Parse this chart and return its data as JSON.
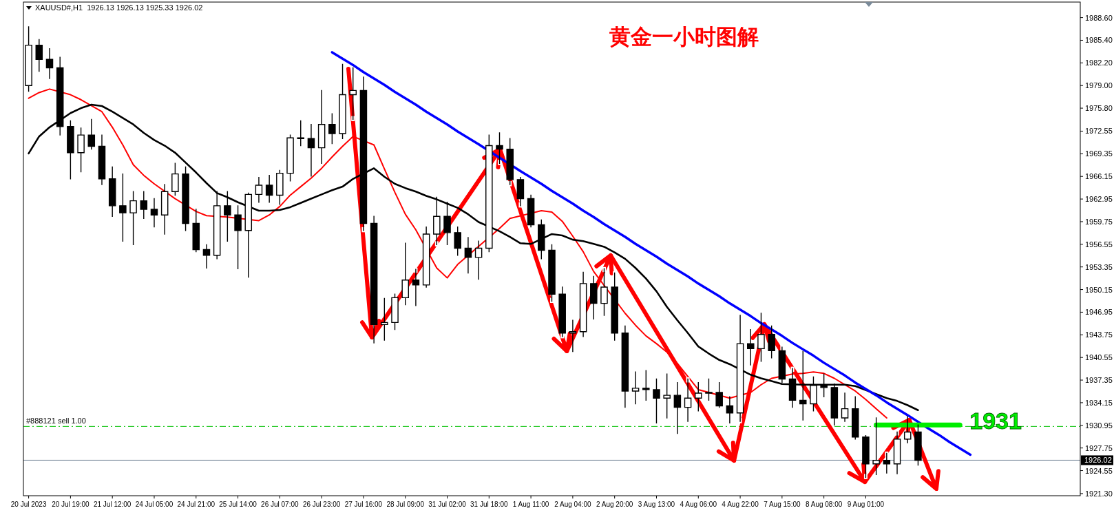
{
  "chart_data": {
    "type": "candlestick",
    "title": "黄金一小时图解",
    "annotations": [
      "XAUUSD#,H1  1926.13 1926.13 1925.33 1926.02",
      {
        "text": "#888121 sell 1.00",
        "y": 1930.8
      }
    ],
    "categories": [
      "20 Jul 2023",
      null,
      null,
      null,
      "20 Jul 19:00",
      null,
      null,
      null,
      "21 Jul 12:00",
      null,
      null,
      null,
      "24 Jul 05:00",
      null,
      null,
      null,
      "24 Jul 21:00",
      null,
      null,
      null,
      "25 Jul 14:00",
      null,
      null,
      null,
      "26 Jul 07:00",
      null,
      null,
      null,
      "26 Jul 23:00",
      null,
      null,
      null,
      "27 Jul 16:00",
      null,
      null,
      null,
      "28 Jul 09:00",
      null,
      null,
      null,
      "31 Jul 02:00",
      null,
      null,
      null,
      "31 Jul 18:00",
      null,
      null,
      null,
      "1 Aug 11:00",
      null,
      null,
      null,
      "2 Aug 04:00",
      null,
      null,
      null,
      "2 Aug 20:00",
      null,
      null,
      null,
      "3 Aug 13:00",
      null,
      null,
      null,
      "4 Aug 06:00",
      null,
      null,
      null,
      "4 Aug 22:00",
      null,
      null,
      null,
      "7 Aug 15:00",
      null,
      null,
      null,
      "8 Aug 08:00",
      null,
      null,
      null,
      "9 Aug 01:00",
      null,
      null,
      null,
      null,
      null,
      null,
      null,
      null,
      null,
      null,
      null,
      null,
      null,
      null,
      null,
      null,
      null,
      null,
      null,
      null
    ],
    "ohlc": [
      [
        1979.0,
        1987.3,
        1978.2,
        1984.7
      ],
      [
        1984.7,
        1985.5,
        1981.0,
        1982.7
      ],
      [
        1982.7,
        1984.2,
        1980.0,
        1981.5
      ],
      [
        1981.5,
        1983.0,
        1972.0,
        1973.2
      ],
      [
        1973.2,
        1974.0,
        1965.8,
        1969.5
      ],
      [
        1969.5,
        1973.0,
        1966.8,
        1972.0
      ],
      [
        1972.0,
        1974.2,
        1970.0,
        1970.4
      ],
      [
        1970.4,
        1972.0,
        1965.0,
        1965.8
      ],
      [
        1965.8,
        1967.5,
        1960.5,
        1962.0
      ],
      [
        1962.0,
        1966.5,
        1957.0,
        1961.0
      ],
      [
        1961.0,
        1964.0,
        1956.5,
        1962.7
      ],
      [
        1962.7,
        1964.0,
        1960.2,
        1961.5
      ],
      [
        1961.5,
        1963.0,
        1959.0,
        1960.7
      ],
      [
        1960.7,
        1965.0,
        1958.0,
        1964.0
      ],
      [
        1964.0,
        1968.0,
        1963.5,
        1966.5
      ],
      [
        1966.5,
        1967.5,
        1958.5,
        1959.5
      ],
      [
        1959.5,
        1961.5,
        1955.5,
        1955.8
      ],
      [
        1955.8,
        1956.5,
        1953.2,
        1955.0
      ],
      [
        1955.0,
        1964.0,
        1954.5,
        1962.0
      ],
      [
        1962.0,
        1964.0,
        1957.0,
        1960.7
      ],
      [
        1960.7,
        1962.0,
        1953.1,
        1958.5
      ],
      [
        1958.5,
        1963.8,
        1951.9,
        1963.6
      ],
      [
        1963.6,
        1966.0,
        1962.5,
        1964.9
      ],
      [
        1964.9,
        1966.3,
        1962.5,
        1963.5
      ],
      [
        1963.5,
        1967.0,
        1962.2,
        1966.6
      ],
      [
        1966.6,
        1972.0,
        1965.5,
        1971.6
      ],
      [
        1971.6,
        1974.0,
        1970.5,
        1971.5
      ],
      [
        1971.5,
        1973.5,
        1966.2,
        1970.2
      ],
      [
        1970.2,
        1978.3,
        1968.0,
        1973.5
      ],
      [
        1973.5,
        1975.0,
        1970.8,
        1972.2
      ],
      [
        1972.2,
        1982.0,
        1971.5,
        1977.7
      ],
      [
        1977.7,
        1981.5,
        1974.2,
        1978.3
      ],
      [
        1978.3,
        1980.2,
        1958.5,
        1959.5
      ],
      [
        1959.5,
        1960.5,
        1942.6,
        1945.2
      ],
      [
        1945.2,
        1948.9,
        1943.0,
        1945.5
      ],
      [
        1945.5,
        1949.5,
        1944.5,
        1949.0
      ],
      [
        1949.0,
        1956.7,
        1948.0,
        1951.5
      ],
      [
        1951.5,
        1953.0,
        1947.9,
        1950.8
      ],
      [
        1950.8,
        1959.0,
        1950.5,
        1958.0
      ],
      [
        1958.0,
        1963.2,
        1956.5,
        1960.5
      ],
      [
        1960.5,
        1962.5,
        1956.5,
        1958.2
      ],
      [
        1958.2,
        1959.0,
        1955.0,
        1956.0
      ],
      [
        1956.0,
        1957.5,
        1952.5,
        1954.7
      ],
      [
        1954.7,
        1957.0,
        1951.6,
        1956.0
      ],
      [
        1956.0,
        1972.0,
        1955.5,
        1970.5
      ],
      [
        1970.5,
        1972.3,
        1968.0,
        1970.0
      ],
      [
        1970.0,
        1971.5,
        1965.0,
        1965.7
      ],
      [
        1965.7,
        1966.0,
        1962.0,
        1963.0
      ],
      [
        1963.0,
        1963.5,
        1959.0,
        1959.3
      ],
      [
        1959.3,
        1960.0,
        1954.5,
        1955.7
      ],
      [
        1955.7,
        1956.5,
        1948.5,
        1949.5
      ],
      [
        1949.5,
        1950.5,
        1943.5,
        1944.0
      ],
      [
        1944.0,
        1945.8,
        1941.4,
        1944.2
      ],
      [
        1944.2,
        1952.6,
        1943.5,
        1951.0
      ],
      [
        1951.0,
        1952.0,
        1946.0,
        1948.2
      ],
      [
        1948.2,
        1953.1,
        1946.5,
        1950.5
      ],
      [
        1950.5,
        1952.5,
        1943.0,
        1944.0
      ],
      [
        1944.0,
        1945.0,
        1933.5,
        1935.8
      ],
      [
        1935.8,
        1938.5,
        1934.0,
        1936.2
      ],
      [
        1936.2,
        1938.7,
        1934.5,
        1936.0
      ],
      [
        1936.0,
        1937.5,
        1931.3,
        1934.8
      ],
      [
        1934.8,
        1938.2,
        1932.0,
        1935.2
      ],
      [
        1935.2,
        1937.0,
        1929.8,
        1933.5
      ],
      [
        1933.5,
        1937.5,
        1931.5,
        1934.8
      ],
      [
        1934.8,
        1937.0,
        1933.0,
        1935.5
      ],
      [
        1935.5,
        1937.5,
        1934.5,
        1935.6
      ],
      [
        1935.6,
        1937.0,
        1933.5,
        1933.7
      ],
      [
        1933.7,
        1935.0,
        1931.3,
        1932.7
      ],
      [
        1932.7,
        1946.5,
        1931.5,
        1942.5
      ],
      [
        1942.5,
        1944.5,
        1939.5,
        1941.8
      ],
      [
        1941.8,
        1946.8,
        1940.0,
        1943.8
      ],
      [
        1943.8,
        1945.0,
        1940.5,
        1941.5
      ],
      [
        1941.5,
        1942.0,
        1937.0,
        1937.5
      ],
      [
        1937.5,
        1939.0,
        1933.5,
        1934.5
      ],
      [
        1934.5,
        1941.4,
        1931.7,
        1934.0
      ],
      [
        1934.0,
        1937.8,
        1933.0,
        1936.6
      ],
      [
        1936.6,
        1938.2,
        1935.0,
        1936.3
      ],
      [
        1936.3,
        1936.8,
        1931.0,
        1932.0
      ],
      [
        1932.0,
        1935.5,
        1931.5,
        1933.3
      ],
      [
        1933.3,
        1935.0,
        1929.0,
        1929.3
      ],
      [
        1929.3,
        1929.5,
        1923.6,
        1925.5
      ],
      [
        1925.5,
        1932.0,
        1924.0,
        1926.0
      ],
      [
        1926.0,
        1927.0,
        1924.2,
        1925.5
      ],
      [
        1925.5,
        1930.0,
        1924.1,
        1929.0
      ],
      [
        1929.0,
        1932.2,
        1928.5,
        1930.0
      ],
      [
        1930.0,
        1931.0,
        1925.33,
        1926.02
      ],
      null,
      null,
      null,
      null,
      null,
      null,
      null,
      null,
      null,
      null,
      null,
      null,
      null,
      null,
      null
    ],
    "series": [
      {
        "type": "line",
        "color": "#ff0000",
        "values": [
          1977.2,
          1978.0,
          1978.5,
          null,
          1977.7,
          1977.0,
          null,
          1975.3,
          1973.1,
          1970.6,
          1967.8,
          1966.3,
          1965.1,
          null,
          1963.0,
          null,
          1961.2,
          1960.6,
          null,
          1960.4,
          null,
          null,
          1959.9,
          1960.7,
          1961.9,
          1963.5,
          1964.7,
          1965.9,
          1967.3,
          1968.9,
          1970.4,
          1971.8,
          null,
          1970.6,
          1967.2,
          1963.9,
          1960.8,
          1958.6,
          null,
          1953.2,
          1951.8,
          1953.7,
          null,
          null,
          null,
          1958.8,
          1960.2,
          null,
          null,
          1961.3,
          1961.1,
          1959.8,
          1957.7,
          1955.5,
          1952.7,
          null,
          null,
          1946.8,
          1945.1,
          1943.6,
          1942.5,
          1941.3,
          1939.7,
          null,
          1936.0,
          null,
          null,
          1934.8,
          null,
          1935.6,
          1936.7,
          1937.6,
          null,
          1938.2,
          1938.3,
          1938.5,
          1938.3,
          1937.6,
          null,
          1935.8,
          1934.6,
          1933.3,
          1932.0,
          null,
          null,
          null,
          null,
          null,
          null,
          null,
          null,
          null,
          null,
          null,
          null,
          null,
          null,
          null,
          null,
          null,
          null
        ]
      },
      {
        "type": "line",
        "color": "#000000",
        "values": [
          1969.4,
          1971.8,
          1973.1,
          null,
          1975.1,
          1975.8,
          1976.3,
          1976.1,
          1975.3,
          1974.4,
          1973.5,
          1972.3,
          1971.3,
          1970.5,
          1969.5,
          1968.1,
          1966.7,
          1965.2,
          1963.8,
          1963.2,
          1962.5,
          null,
          1961.3,
          1961.3,
          1961.4,
          1961.8,
          1962.4,
          1963.0,
          1963.6,
          1964.2,
          1964.7,
          1965.8,
          null,
          1967.3,
          1966.1,
          1965.1,
          1964.5,
          1964.0,
          1963.4,
          1962.9,
          1962.3,
          1961.7,
          1960.8,
          1959.7,
          null,
          1958.4,
          1957.6,
          1956.7,
          1956.6,
          null,
          1958.0,
          1957.8,
          1957.2,
          1957.0,
          1956.6,
          1956.2,
          1955.4,
          1954.5,
          1953.2,
          1951.7,
          1949.9,
          1947.7,
          1945.8,
          1944.0,
          1942.1,
          1941.1,
          1940.2,
          1939.6,
          null,
          1938.1,
          1937.6,
          1937.2,
          1936.8,
          null,
          1936.7,
          null,
          null,
          1936.7,
          1936.7,
          1936.5,
          null,
          null,
          1934.8,
          1934.4,
          1933.8,
          1933.1,
          null,
          null,
          null,
          null,
          null,
          null,
          null,
          null,
          null,
          null,
          null,
          null,
          null,
          null,
          null
        ]
      },
      {
        "type": "line",
        "color": "#0000ff",
        "values": [
          null,
          null,
          null,
          null,
          null,
          null,
          null,
          null,
          null,
          null,
          null,
          null,
          null,
          null,
          null,
          null,
          null,
          null,
          null,
          null,
          null,
          null,
          null,
          null,
          null,
          null,
          null,
          null,
          null,
          1983.7,
          1982.8,
          1981.9,
          1980.9,
          1980.0,
          1979.1,
          1978.1,
          1977.2,
          1976.3,
          1975.3,
          1974.4,
          1973.5,
          1972.5,
          1971.6,
          1970.7,
          null,
          1968.8,
          null,
          1966.9,
          1966.0,
          1965.1,
          1964.1,
          1963.2,
          1962.3,
          1961.3,
          1960.4,
          1959.4,
          1958.5,
          1957.6,
          1956.6,
          1955.7,
          1954.8,
          1953.8,
          1952.9,
          1952.0,
          1951.0,
          1950.1,
          1949.2,
          1948.2,
          1947.3,
          1946.4,
          1945.4,
          1944.5,
          1943.6,
          1942.6,
          1941.7,
          1940.8,
          1939.8,
          1938.9,
          1938.0,
          1937.0,
          1936.1,
          1935.2,
          1934.2,
          1933.3,
          1932.4,
          null,
          1930.5,
          1929.6,
          1928.6,
          1927.7,
          1926.8,
          null,
          null,
          null,
          null,
          null,
          null,
          null,
          null,
          null,
          null
        ]
      },
      {
        "type": "line",
        "name": "1931",
        "color": "#00ee00",
        "values": [
          null,
          null,
          null,
          null,
          null,
          null,
          null,
          null,
          null,
          null,
          null,
          null,
          null,
          null,
          null,
          null,
          null,
          null,
          null,
          null,
          null,
          null,
          null,
          null,
          null,
          null,
          null,
          null,
          null,
          null,
          null,
          null,
          null,
          null,
          null,
          null,
          null,
          null,
          null,
          null,
          null,
          null,
          null,
          null,
          null,
          null,
          null,
          null,
          null,
          null,
          null,
          null,
          null,
          null,
          null,
          null,
          null,
          null,
          null,
          null,
          null,
          null,
          null,
          null,
          null,
          null,
          null,
          null,
          null,
          null,
          null,
          null,
          null,
          null,
          null,
          null,
          null,
          null,
          null,
          null,
          null,
          1931,
          1931,
          1931,
          1931,
          1931,
          1931,
          1931,
          1931,
          1931,
          null,
          null,
          null,
          null,
          null,
          null,
          null,
          null,
          null,
          null,
          null
        ]
      }
    ],
    "ref_lines": [
      {
        "axis": "y",
        "value": 1930.8,
        "color": "#00c000",
        "line_style": "dashed"
      },
      {
        "axis": "y",
        "value": 1926.02,
        "label": "1926.02",
        "color": "#778899"
      }
    ],
    "ylim": [
      1921.0,
      1990.8
    ],
    "yticks": [
      {
        "value": 1988.6,
        "label": "1988.60"
      },
      {
        "value": 1985.4,
        "label": "1985.40"
      },
      {
        "value": 1982.2,
        "label": "1982.20"
      },
      {
        "value": 1979,
        "label": "1979.00"
      },
      {
        "value": 1975.8,
        "label": "1975.80"
      },
      {
        "value": 1972.55,
        "label": "1972.55"
      },
      {
        "value": 1969.35,
        "label": "1969.35"
      },
      {
        "value": 1966.15,
        "label": "1966.15"
      },
      {
        "value": 1962.95,
        "label": "1962.95"
      },
      {
        "value": 1959.75,
        "label": "1959.75"
      },
      {
        "value": 1956.55,
        "label": "1956.55"
      },
      {
        "value": 1953.35,
        "label": "1953.35"
      },
      {
        "value": 1950.15,
        "label": "1950.15"
      },
      {
        "value": 1946.95,
        "label": "1946.95"
      },
      {
        "value": 1943.75,
        "label": "1943.75"
      },
      {
        "value": 1940.55,
        "label": "1940.55"
      },
      {
        "value": 1937.35,
        "label": "1937.35"
      },
      {
        "value": 1934.15,
        "label": "1934.15"
      },
      {
        "value": 1930.95,
        "label": "1930.95"
      },
      {
        "value": 1927.75,
        "label": "1927.75"
      },
      {
        "value": 1924.55,
        "label": "1924.55"
      },
      {
        "value": 1921.3,
        "label": "1921.30"
      }
    ]
  }
}
